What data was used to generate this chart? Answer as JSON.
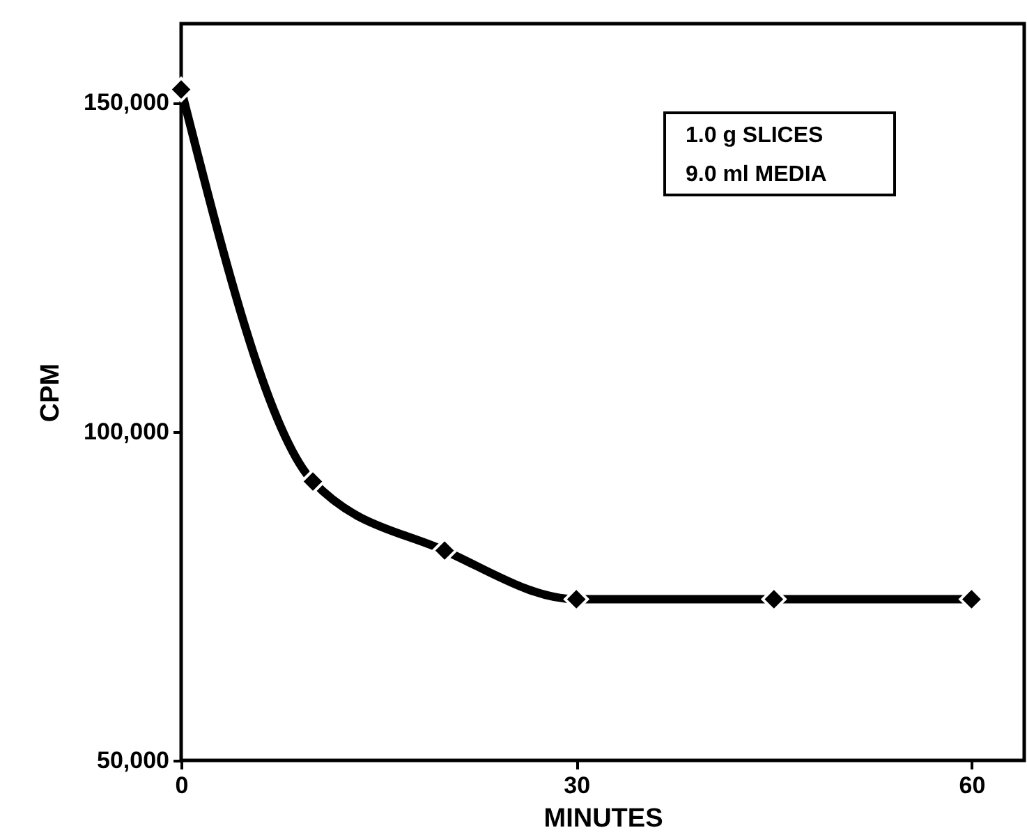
{
  "chart_data": {
    "type": "line",
    "xlabel": "MINUTES",
    "ylabel": "CPM",
    "x": [
      0,
      10,
      20,
      30,
      45,
      60
    ],
    "series": [
      {
        "color": "#000000",
        "values": [
          152000,
          92400,
          81900,
          74500,
          74500,
          74500
        ]
      }
    ],
    "xlim": [
      0,
      64
    ],
    "xticks": [
      0,
      30,
      60
    ],
    "ylim": [
      50000,
      162000
    ],
    "yticks": [
      {
        "value": 50000,
        "label": "50,000"
      },
      {
        "value": 100000,
        "label": "100,000"
      },
      {
        "value": 150000,
        "label": "150,000"
      }
    ],
    "marker": "diamond",
    "line_style": "solid",
    "grid": false,
    "annotations": [
      "1.0 g   SLICES",
      "9.0 ml MEDIA"
    ]
  }
}
